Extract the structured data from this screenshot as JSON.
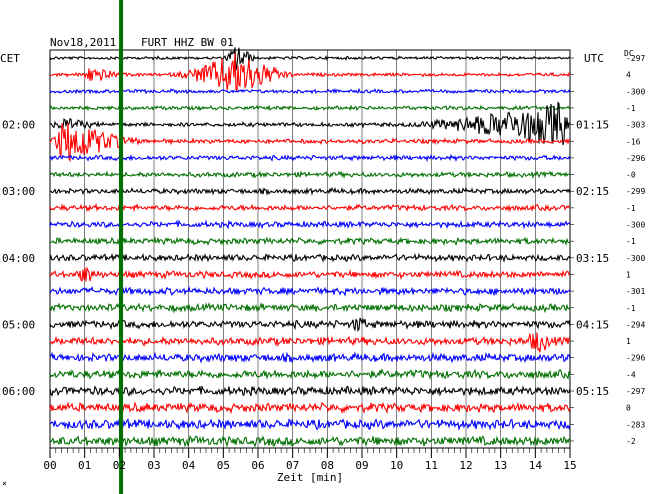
{
  "header": {
    "date": "Nov18,2011",
    "station": "FURT HHZ BW 01",
    "left_zone": "CET",
    "right_zone": "UTC",
    "dc_label": "DC"
  },
  "chart_data": {
    "type": "line",
    "xlabel": "Zeit [min]",
    "xlim": [
      0,
      15
    ],
    "x_ticks": [
      "00",
      "01",
      "02",
      "03",
      "04",
      "05",
      "06",
      "07",
      "08",
      "09",
      "10",
      "11",
      "12",
      "13",
      "14",
      "15"
    ],
    "left_time_labels": [
      {
        "row": 4,
        "label": "02:00"
      },
      {
        "row": 8,
        "label": "03:00"
      },
      {
        "row": 12,
        "label": "04:00"
      },
      {
        "row": 16,
        "label": "05:00"
      },
      {
        "row": 20,
        "label": "06:00"
      }
    ],
    "right_time_labels": [
      {
        "row": 4,
        "label": "01:15"
      },
      {
        "row": 8,
        "label": "02:15"
      },
      {
        "row": 12,
        "label": "03:15"
      },
      {
        "row": 16,
        "label": "04:15"
      },
      {
        "row": 20,
        "label": "05:15"
      }
    ],
    "dc_offsets": [
      "-297",
      "4",
      "-300",
      "-1",
      "-303",
      "-16",
      "-296",
      "-0",
      "-299",
      "-1",
      "-300",
      "-1",
      "-300",
      "1",
      "-301",
      "-1",
      "-294",
      "1",
      "-296",
      "-4",
      "-297",
      "0",
      "-283",
      "-2"
    ],
    "trace_colors": [
      "#000000",
      "#ff0000",
      "#0000ff",
      "#007000"
    ],
    "traces": 24,
    "vertical_marker_min": 2.05,
    "events": [
      {
        "row": 1,
        "start": 3.4,
        "end": 7.2,
        "peak": 5.4,
        "amp": 1.0
      },
      {
        "row": 1,
        "start": 0.8,
        "end": 2.2,
        "peak": 1.2,
        "amp": 0.35
      },
      {
        "row": 0,
        "start": 5.0,
        "end": 6.0,
        "peak": 5.4,
        "amp": 0.7
      },
      {
        "row": 4,
        "start": 10.0,
        "end": 15.0,
        "peak": 14.8,
        "amp": 1.0
      },
      {
        "row": 4,
        "start": 0.0,
        "end": 1.6,
        "peak": 0.4,
        "amp": 0.25
      },
      {
        "row": 5,
        "start": 0.0,
        "end": 2.8,
        "peak": 0.4,
        "amp": 1.0
      },
      {
        "row": 13,
        "start": 0.7,
        "end": 1.5,
        "peak": 1.0,
        "amp": 0.35
      },
      {
        "row": 17,
        "start": 13.6,
        "end": 14.6,
        "peak": 14.1,
        "amp": 0.45
      },
      {
        "row": 16,
        "start": 8.6,
        "end": 9.2,
        "peak": 8.9,
        "amp": 0.3
      }
    ]
  }
}
